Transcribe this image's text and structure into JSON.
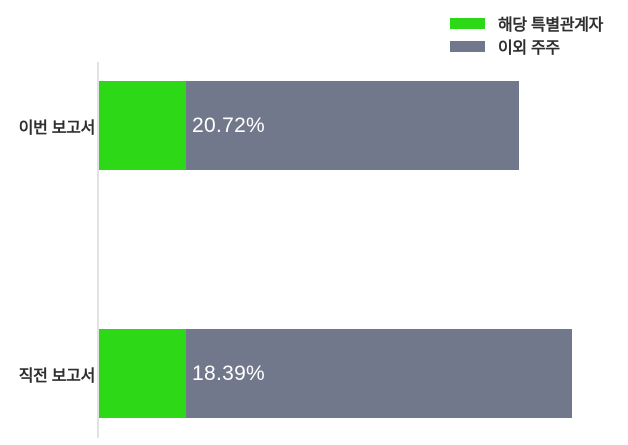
{
  "chart_data": {
    "type": "bar",
    "orientation": "horizontal",
    "stacked": true,
    "title": "",
    "categories": [
      "이번 보고서",
      "직전 보고서"
    ],
    "series": [
      {
        "name": "해당 특별관계자",
        "color": "#2dd816",
        "values": [
          20.72,
          18.39
        ]
      },
      {
        "name": "이외 주주",
        "color": "#71788b",
        "values": [
          79.28,
          81.61
        ]
      }
    ],
    "value_labels": [
      "20.72%",
      "18.39%"
    ],
    "value_label_color": "#ffffff",
    "legend_position": "top-right",
    "grid": false,
    "x_axis_ticks_visible": false,
    "y_axis_baseline_color": "#e2e2e2"
  },
  "colors": {
    "background": "#ffffff",
    "category_label": "#2e2e2e"
  }
}
